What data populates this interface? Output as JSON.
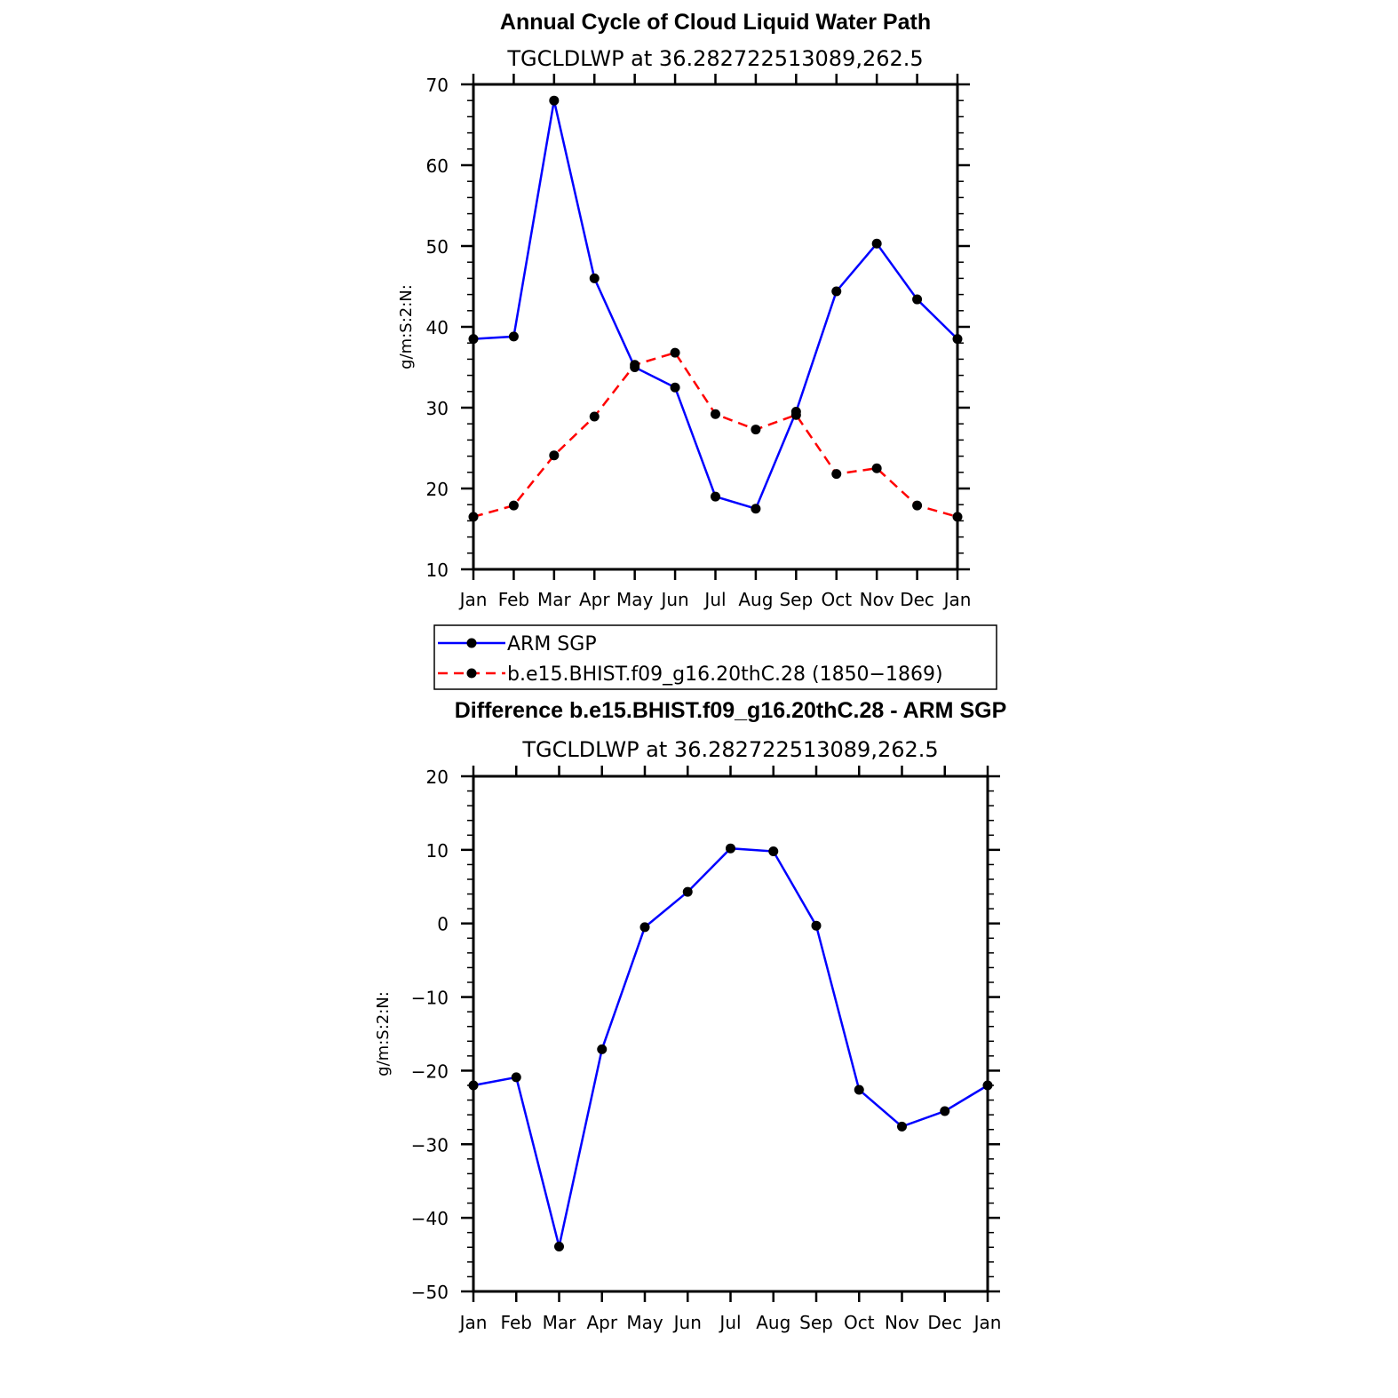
{
  "chart_data": [
    {
      "type": "line",
      "title": "Annual Cycle of Cloud Liquid Water Path",
      "subtitle": "TGCLDLWP at 36.282722513089,262.5",
      "xlabel": "",
      "ylabel": "g/m:S:2:N:",
      "categories": [
        "Jan",
        "Feb",
        "Mar",
        "Apr",
        "May",
        "Jun",
        "Jul",
        "Aug",
        "Sep",
        "Oct",
        "Nov",
        "Dec",
        "Jan"
      ],
      "ylim": [
        10,
        70
      ],
      "yticks": [
        "10",
        "20",
        "30",
        "40",
        "50",
        "60",
        "70"
      ],
      "yticks_values": [
        10,
        20,
        30,
        40,
        50,
        60,
        70
      ],
      "series": [
        {
          "name": "ARM SGP",
          "color": "#0000ff",
          "dash": "solid",
          "values": [
            38.5,
            38.8,
            68.0,
            46.0,
            35.0,
            32.5,
            19.0,
            17.5,
            29.5,
            44.4,
            50.3,
            43.4,
            38.5
          ]
        },
        {
          "name": "b.e15.BHIST.f09_g16.20thC.28 (1850–1869)",
          "color": "#ff0000",
          "dash": "dashed",
          "values": [
            16.5,
            17.9,
            24.1,
            28.9,
            35.3,
            36.8,
            29.2,
            27.3,
            29.1,
            21.8,
            22.5,
            17.9,
            16.5
          ]
        }
      ],
      "legend": {
        "placement": "below",
        "entries": [
          "ARM SGP",
          "b.e15.BHIST.f09_g16.20thC.28 (1850−1869)"
        ]
      }
    },
    {
      "type": "line",
      "title": "Difference b.e15.BHIST.f09_g16.20thC.28 - ARM SGP",
      "subtitle": "TGCLDLWP at 36.282722513089,262.5",
      "xlabel": "",
      "ylabel": "g/m:S:2:N:",
      "categories": [
        "Jan",
        "Feb",
        "Mar",
        "Apr",
        "May",
        "Jun",
        "Jul",
        "Aug",
        "Sep",
        "Oct",
        "Nov",
        "Dec",
        "Jan"
      ],
      "ylim": [
        -50,
        20
      ],
      "yticks": [
        "−50",
        "−40",
        "−30",
        "−20",
        "−10",
        "0",
        "10",
        "20"
      ],
      "yticks_values": [
        -50,
        -40,
        -30,
        -20,
        -10,
        0,
        10,
        20
      ],
      "series": [
        {
          "name": "Difference",
          "color": "#0000ff",
          "dash": "solid",
          "values": [
            -22.0,
            -20.9,
            -43.9,
            -17.1,
            -0.5,
            4.3,
            10.2,
            9.8,
            -0.3,
            -22.6,
            -27.6,
            -25.5,
            -22.0
          ]
        }
      ]
    }
  ]
}
